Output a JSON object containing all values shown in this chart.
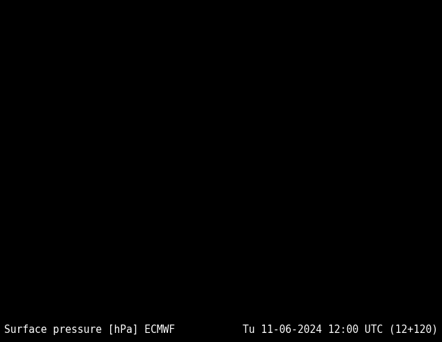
{
  "title_left": "Surface pressure [hPa] ECMWF",
  "title_right": "Tu 11-06-2024 12:00 UTC (12+120)",
  "footer_bg": "#000000",
  "footer_text_color": "#ffffff",
  "footer_fontsize": 10.5,
  "map_extent": [
    25,
    155,
    -15,
    75
  ],
  "ocean_color": "#b8d9e8",
  "land_color": "#d4c9a0",
  "isobar_blue": "#0000cc",
  "isobar_black": "#000000",
  "isobar_red": "#cc0000",
  "lw_blue": 1.0,
  "lw_black": 1.5,
  "lw_red": 1.0,
  "label_fontsize": 6.5,
  "border_color": "#888888",
  "coast_color": "#888888",
  "border_lw": 0.4,
  "coast_lw": 0.5
}
